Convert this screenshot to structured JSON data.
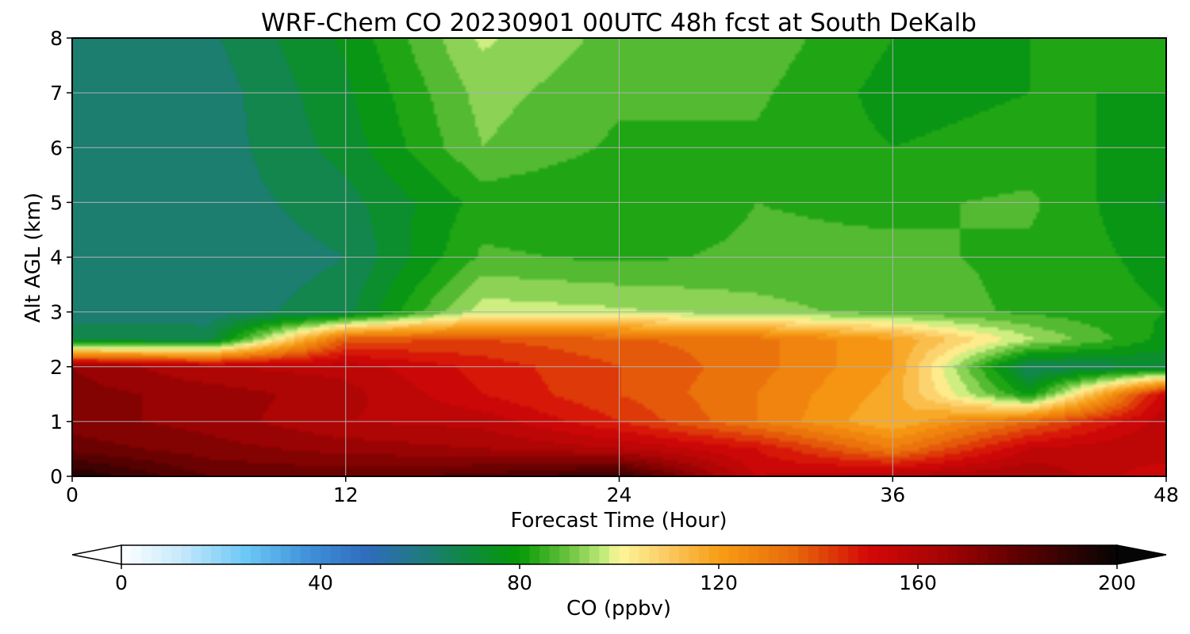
{
  "chart_data": {
    "type": "heatmap",
    "title": "WRF-Chem CO  20230901 00UTC 48h fcst at South DeKalb",
    "xlabel": "Forecast Time (Hour)",
    "ylabel": "Alt AGL (km)",
    "xlim": [
      0,
      48
    ],
    "ylim": [
      0,
      8
    ],
    "x_ticks": [
      "0",
      "12",
      "24",
      "36",
      "48"
    ],
    "y_ticks": [
      "0",
      "1",
      "2",
      "3",
      "4",
      "5",
      "6",
      "7",
      "8"
    ],
    "grid": true,
    "colorbar": {
      "label": "CO  (ppbv)",
      "range": [
        0,
        200
      ],
      "ticks": [
        "0",
        "40",
        "80",
        "120",
        "160",
        "200"
      ],
      "extend": "both",
      "colors": [
        {
          "value": 0,
          "color": "#ffffff"
        },
        {
          "value": 12,
          "color": "#c6e9fb"
        },
        {
          "value": 25,
          "color": "#6cc8f5"
        },
        {
          "value": 38,
          "color": "#3f8fd8"
        },
        {
          "value": 50,
          "color": "#2f6bbb"
        },
        {
          "value": 60,
          "color": "#1f7a80"
        },
        {
          "value": 70,
          "color": "#0e8a3c"
        },
        {
          "value": 80,
          "color": "#069a06"
        },
        {
          "value": 90,
          "color": "#6cc440"
        },
        {
          "value": 97,
          "color": "#c4ec7c"
        },
        {
          "value": 100,
          "color": "#fdf79a"
        },
        {
          "value": 110,
          "color": "#fbc860"
        },
        {
          "value": 120,
          "color": "#f79e14"
        },
        {
          "value": 135,
          "color": "#e86a0a"
        },
        {
          "value": 150,
          "color": "#d40808"
        },
        {
          "value": 165,
          "color": "#a60404"
        },
        {
          "value": 180,
          "color": "#600000"
        },
        {
          "value": 200,
          "color": "#050505"
        }
      ]
    },
    "x": [
      0,
      6,
      12,
      18,
      24,
      30,
      36,
      42,
      48
    ],
    "y": [
      0,
      0.5,
      1,
      1.5,
      2,
      2.5,
      3,
      4,
      5,
      6,
      7,
      8
    ],
    "z": [
      [
        195,
        180,
        178,
        182,
        190,
        155,
        160,
        165,
        150
      ],
      [
        178,
        172,
        168,
        165,
        160,
        150,
        130,
        155,
        160
      ],
      [
        172,
        168,
        160,
        158,
        145,
        130,
        115,
        135,
        158
      ],
      [
        172,
        168,
        162,
        150,
        140,
        130,
        118,
        78,
        155
      ],
      [
        170,
        160,
        158,
        148,
        140,
        132,
        120,
        65,
        70
      ],
      [
        68,
        68,
        138,
        140,
        136,
        132,
        120,
        96,
        78
      ],
      [
        63,
        62,
        68,
        98,
        96,
        92,
        88,
        84,
        80
      ],
      [
        61,
        61,
        65,
        86,
        84,
        86,
        86,
        84,
        78
      ],
      [
        62,
        62,
        68,
        82,
        80,
        85,
        84,
        86,
        74
      ],
      [
        62,
        62,
        72,
        90,
        84,
        84,
        80,
        82,
        78
      ],
      [
        61,
        62,
        74,
        92,
        86,
        86,
        78,
        80,
        80
      ],
      [
        62,
        64,
        76,
        96,
        88,
        88,
        80,
        80,
        80
      ]
    ]
  }
}
